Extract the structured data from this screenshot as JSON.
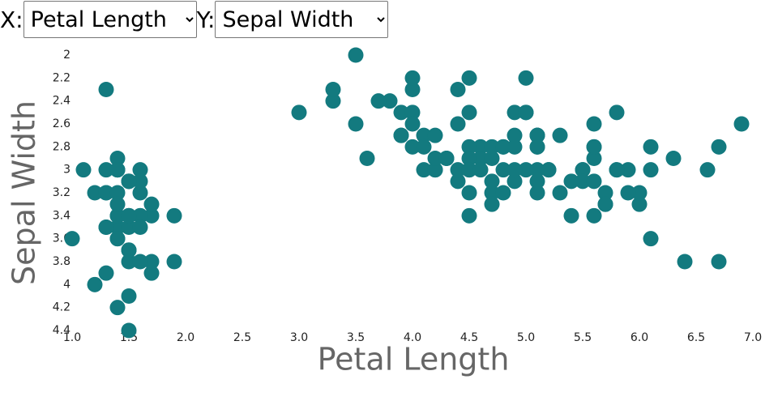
{
  "controls": {
    "x_prefix": "X:",
    "x_selected": "Petal Length",
    "y_prefix": "Y:",
    "y_selected": "Sepal Width"
  },
  "chart_data": {
    "type": "scatter",
    "x_label": "Petal Length",
    "y_label": "Sepal Width",
    "color": "#137a7f",
    "xlim": [
      1,
      7
    ],
    "ylim": [
      2,
      4.4
    ],
    "y_reversed": true,
    "xticks": [
      {
        "value": 1,
        "label": "1.0"
      },
      1.5,
      {
        "value": 2,
        "label": "2.0"
      },
      2.5,
      {
        "value": 3,
        "label": "3.0"
      },
      3.5,
      {
        "value": 4,
        "label": "4.0"
      },
      4.5,
      {
        "value": 5,
        "label": "5.0"
      },
      5.5,
      {
        "value": 6,
        "label": "6.0"
      },
      6.5,
      {
        "value": 7,
        "label": "7.0"
      }
    ],
    "yticks": [
      2,
      2.2,
      2.4,
      2.6,
      2.8,
      3,
      3.2,
      3.4,
      3.6,
      3.8,
      4,
      4.2,
      4.4
    ],
    "x": [
      1.4,
      1.4,
      1.3,
      1.5,
      1.4,
      1.7,
      1.4,
      1.5,
      1.4,
      1.5,
      1.5,
      1.6,
      1.4,
      1.1,
      1.2,
      1.5,
      1.3,
      1.4,
      1.7,
      1.5,
      1.7,
      1.5,
      1.0,
      1.7,
      1.9,
      1.6,
      1.6,
      1.5,
      1.4,
      1.6,
      1.6,
      1.5,
      1.5,
      1.4,
      1.5,
      1.2,
      1.3,
      1.4,
      1.3,
      1.5,
      1.3,
      1.3,
      1.3,
      1.6,
      1.9,
      1.4,
      1.6,
      1.4,
      1.5,
      1.4,
      4.7,
      4.5,
      4.9,
      4.0,
      4.6,
      4.5,
      4.7,
      3.3,
      4.6,
      3.9,
      3.5,
      4.2,
      4.0,
      4.7,
      3.6,
      4.4,
      4.5,
      4.1,
      4.5,
      3.9,
      4.8,
      4.0,
      4.9,
      4.7,
      4.3,
      4.4,
      4.8,
      5.0,
      4.5,
      3.5,
      3.8,
      3.7,
      3.9,
      5.1,
      4.5,
      4.5,
      4.7,
      4.4,
      4.1,
      4.0,
      4.4,
      4.6,
      4.0,
      3.3,
      4.2,
      4.2,
      4.2,
      4.3,
      3.0,
      4.1,
      6.0,
      5.1,
      5.9,
      5.6,
      5.8,
      6.6,
      4.5,
      6.3,
      5.8,
      6.1,
      5.1,
      5.3,
      5.5,
      5.0,
      5.1,
      5.3,
      5.5,
      6.7,
      6.9,
      5.0,
      5.7,
      4.9,
      6.7,
      4.9,
      5.7,
      6.0,
      4.8,
      4.9,
      5.6,
      5.8,
      6.1,
      6.4,
      5.6,
      5.1,
      5.6,
      6.1,
      5.6,
      5.5,
      4.8,
      5.4,
      5.6,
      5.1,
      5.1,
      5.9,
      5.7,
      5.2,
      5.0,
      5.2,
      5.4,
      5.1
    ],
    "y": [
      3.5,
      3.0,
      3.2,
      3.1,
      3.6,
      3.9,
      3.4,
      3.4,
      2.9,
      3.1,
      3.7,
      3.4,
      3.0,
      3.0,
      4.0,
      4.4,
      3.9,
      3.5,
      3.8,
      3.8,
      3.4,
      3.7,
      3.6,
      3.3,
      3.4,
      3.0,
      3.4,
      3.5,
      3.4,
      3.2,
      3.1,
      3.4,
      4.1,
      4.2,
      3.1,
      3.2,
      3.5,
      3.6,
      3.0,
      3.4,
      3.5,
      2.3,
      3.2,
      3.5,
      3.8,
      3.0,
      3.8,
      3.2,
      3.7,
      3.3,
      3.2,
      3.2,
      3.1,
      2.3,
      2.8,
      2.8,
      3.3,
      2.4,
      2.9,
      2.7,
      2.0,
      3.0,
      2.2,
      2.9,
      2.9,
      3.1,
      3.0,
      2.7,
      2.2,
      2.5,
      3.2,
      2.8,
      2.5,
      2.8,
      2.9,
      3.0,
      2.8,
      3.0,
      2.9,
      2.6,
      2.4,
      2.4,
      2.7,
      2.7,
      3.0,
      3.4,
      3.1,
      2.3,
      3.0,
      2.5,
      2.6,
      3.0,
      2.6,
      2.3,
      2.7,
      3.0,
      2.9,
      2.9,
      2.5,
      2.8,
      3.3,
      2.7,
      3.0,
      2.9,
      3.0,
      3.0,
      2.5,
      2.9,
      2.5,
      3.6,
      3.2,
      2.7,
      3.0,
      2.5,
      2.8,
      3.2,
      3.0,
      3.8,
      2.6,
      2.2,
      3.2,
      2.8,
      2.8,
      2.7,
      3.3,
      3.2,
      2.8,
      3.0,
      2.8,
      3.0,
      2.8,
      3.8,
      2.8,
      2.8,
      2.6,
      3.0,
      3.4,
      3.1,
      3.0,
      3.1,
      3.1,
      3.1,
      2.7,
      3.2,
      3.3,
      3.0,
      2.5,
      3.0,
      3.4,
      3.0
    ]
  }
}
